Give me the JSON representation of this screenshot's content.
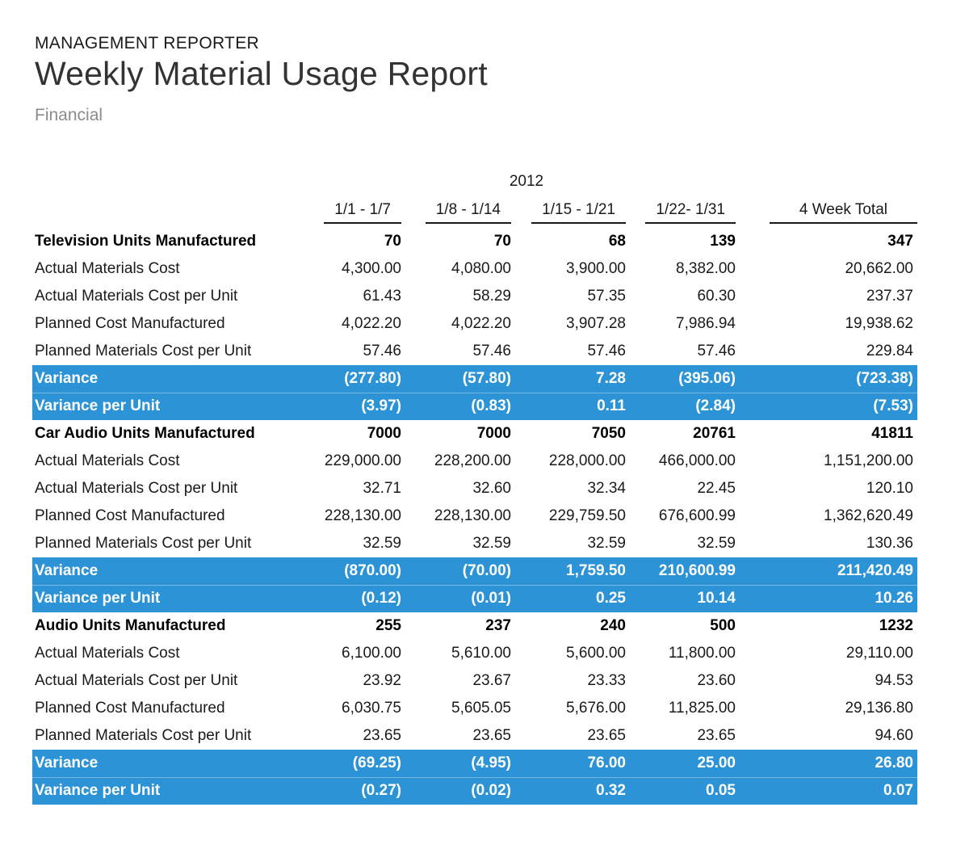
{
  "header": {
    "app_name": "MANAGEMENT REPORTER",
    "report_title": "Weekly Material Usage Report",
    "subtitle": "Financial"
  },
  "colors": {
    "variance_row_background": "#2b93d6",
    "variance_row_text": "#ffffff",
    "header_underline": "#1a1a1a",
    "subtitle_gray": "#8c8c8c"
  },
  "table": {
    "year": "2012",
    "columns": [
      "1/1 - 1/7",
      "1/8 - 1/14",
      "1/15 - 1/21",
      "1/22- 1/31",
      "4 Week Total"
    ],
    "rows": [
      {
        "kind": "section",
        "label": "Television Units Manufactured",
        "values": [
          "70",
          "70",
          "68",
          "139",
          "347"
        ]
      },
      {
        "kind": "normal",
        "label": "Actual Materials Cost",
        "values": [
          "4,300.00",
          "4,080.00",
          "3,900.00",
          "8,382.00",
          "20,662.00"
        ]
      },
      {
        "kind": "normal",
        "label": "Actual Materials Cost per Unit",
        "values": [
          "61.43",
          "58.29",
          "57.35",
          "60.30",
          "237.37"
        ]
      },
      {
        "kind": "normal",
        "label": "Planned Cost Manufactured",
        "values": [
          "4,022.20",
          "4,022.20",
          "3,907.28",
          "7,986.94",
          "19,938.62"
        ]
      },
      {
        "kind": "normal",
        "label": "Planned Materials Cost per Unit",
        "values": [
          "57.46",
          "57.46",
          "57.46",
          "57.46",
          "229.84"
        ]
      },
      {
        "kind": "variance",
        "label": "Variance",
        "values": [
          "(277.80)",
          "(57.80)",
          "7.28",
          "(395.06)",
          "(723.38)"
        ]
      },
      {
        "kind": "variance",
        "label": "Variance per Unit",
        "values": [
          "(3.97)",
          "(0.83)",
          "0.11",
          "(2.84)",
          "(7.53)"
        ]
      },
      {
        "kind": "section",
        "label": "Car Audio Units Manufactured",
        "values": [
          "7000",
          "7000",
          "7050",
          "20761",
          "41811"
        ]
      },
      {
        "kind": "normal",
        "label": "Actual Materials Cost",
        "values": [
          "229,000.00",
          "228,200.00",
          "228,000.00",
          "466,000.00",
          "1,151,200.00"
        ]
      },
      {
        "kind": "normal",
        "label": "Actual Materials Cost per Unit",
        "values": [
          "32.71",
          "32.60",
          "32.34",
          "22.45",
          "120.10"
        ]
      },
      {
        "kind": "normal",
        "label": "Planned Cost Manufactured",
        "values": [
          "228,130.00",
          "228,130.00",
          "229,759.50",
          "676,600.99",
          "1,362,620.49"
        ]
      },
      {
        "kind": "normal",
        "label": "Planned Materials Cost per Unit",
        "values": [
          "32.59",
          "32.59",
          "32.59",
          "32.59",
          "130.36"
        ]
      },
      {
        "kind": "variance",
        "label": "Variance",
        "values": [
          "(870.00)",
          "(70.00)",
          "1,759.50",
          "210,600.99",
          "211,420.49"
        ]
      },
      {
        "kind": "variance",
        "label": "Variance per Unit",
        "values": [
          "(0.12)",
          "(0.01)",
          "0.25",
          "10.14",
          "10.26"
        ]
      },
      {
        "kind": "section",
        "label": "Audio Units Manufactured",
        "values": [
          "255",
          "237",
          "240",
          "500",
          "1232"
        ]
      },
      {
        "kind": "normal",
        "label": "Actual Materials Cost",
        "values": [
          "6,100.00",
          "5,610.00",
          "5,600.00",
          "11,800.00",
          "29,110.00"
        ]
      },
      {
        "kind": "normal",
        "label": "Actual Materials Cost per Unit",
        "values": [
          "23.92",
          "23.67",
          "23.33",
          "23.60",
          "94.53"
        ]
      },
      {
        "kind": "normal",
        "label": "Planned Cost Manufactured",
        "values": [
          "6,030.75",
          "5,605.05",
          "5,676.00",
          "11,825.00",
          "29,136.80"
        ]
      },
      {
        "kind": "normal",
        "label": "Planned Materials Cost per Unit",
        "values": [
          "23.65",
          "23.65",
          "23.65",
          "23.65",
          "94.60"
        ]
      },
      {
        "kind": "variance",
        "label": "Variance",
        "values": [
          "(69.25)",
          "(4.95)",
          "76.00",
          "25.00",
          "26.80"
        ]
      },
      {
        "kind": "variance",
        "label": "Variance per Unit",
        "values": [
          "(0.27)",
          "(0.02)",
          "0.32",
          "0.05",
          "0.07"
        ]
      }
    ]
  }
}
